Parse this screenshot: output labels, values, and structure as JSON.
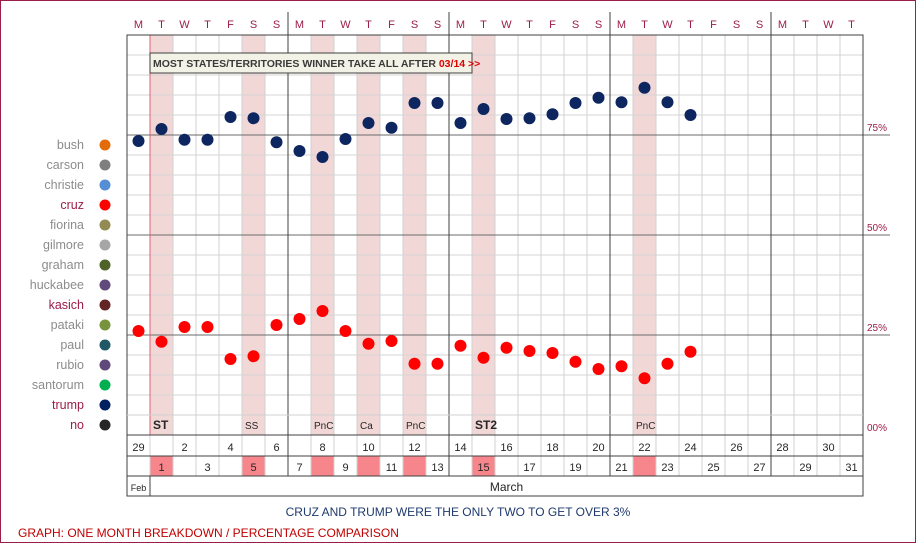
{
  "chart_data": {
    "type": "scatter",
    "x_unit": "day",
    "y_unit": "percent",
    "ylim": [
      0,
      100
    ],
    "y_ticks": [
      {
        "value": 75,
        "label": "75%"
      },
      {
        "value": 50,
        "label": "50%"
      },
      {
        "value": 25,
        "label": "25%"
      },
      {
        "value": 0,
        "label": "00%"
      }
    ],
    "weekday_letters": [
      "M",
      "T",
      "W",
      "T",
      "F",
      "S",
      "S",
      "M",
      "T",
      "W",
      "T",
      "F",
      "S",
      "S",
      "M",
      "T",
      "W",
      "T",
      "F",
      "S",
      "S",
      "M",
      "T",
      "W",
      "T",
      "F",
      "S",
      "S",
      "M",
      "T",
      "W",
      "T"
    ],
    "date_numbers": [
      "29",
      "1",
      "2",
      "3",
      "4",
      "5",
      "6",
      "7",
      "8",
      "9",
      "10",
      "11",
      "12",
      "13",
      "14",
      "15",
      "16",
      "17",
      "18",
      "19",
      "20",
      "21",
      "22",
      "23",
      "24",
      "25",
      "26",
      "27",
      "28",
      "29",
      "30",
      "31"
    ],
    "month_labels": [
      {
        "label": "Feb",
        "from": 0,
        "to": 0
      },
      {
        "label": "March",
        "from": 1,
        "to": 31
      }
    ],
    "highlighted_days": [
      1,
      5,
      8,
      10,
      12,
      15,
      22
    ],
    "event_labels": [
      {
        "day": 1,
        "text": "ST",
        "bold": true
      },
      {
        "day": 5,
        "text": "SS",
        "bold": false
      },
      {
        "day": 8,
        "text": "PnC",
        "bold": false
      },
      {
        "day": 10,
        "text": "Ca",
        "bold": false
      },
      {
        "day": 12,
        "text": "PnC",
        "bold": false
      },
      {
        "day": 15,
        "text": "ST2",
        "bold": true
      },
      {
        "day": 22,
        "text": "PnC",
        "bold": false
      }
    ],
    "annotation": {
      "text": "MOST STATES/TERRITORIES WINNER TAKE ALL AFTER ",
      "highlight": "03/14 >>"
    },
    "legend": [
      {
        "name": "bush",
        "color": "#e36c0a",
        "active": false
      },
      {
        "name": "carson",
        "color": "#7f7f7f",
        "active": false
      },
      {
        "name": "christie",
        "color": "#558ed5",
        "active": false
      },
      {
        "name": "cruz",
        "color": "#ff0000",
        "active": true
      },
      {
        "name": "fiorina",
        "color": "#948a54",
        "active": false
      },
      {
        "name": "gilmore",
        "color": "#a6a6a6",
        "active": false
      },
      {
        "name": "graham",
        "color": "#4f6228",
        "active": false
      },
      {
        "name": "huckabee",
        "color": "#604a7b",
        "active": false
      },
      {
        "name": "kasich",
        "color": "#632523",
        "active": true
      },
      {
        "name": "pataki",
        "color": "#77933c",
        "active": false
      },
      {
        "name": "paul",
        "color": "#215868",
        "active": false
      },
      {
        "name": "rubio",
        "color": "#5f497a",
        "active": false
      },
      {
        "name": "santorum",
        "color": "#00b050",
        "active": false
      },
      {
        "name": "trump",
        "color": "#002060",
        "active": true
      },
      {
        "name": "no",
        "color": "#262626",
        "active": true
      }
    ],
    "series": [
      {
        "name": "trump",
        "color": "#0d2660",
        "points": [
          [
            0,
            73.5
          ],
          [
            1,
            76.5
          ],
          [
            2,
            73.8
          ],
          [
            3,
            73.8
          ],
          [
            4,
            79.5
          ],
          [
            5,
            79.2
          ],
          [
            6,
            73.2
          ],
          [
            7,
            71
          ],
          [
            8,
            69.5
          ],
          [
            9,
            74
          ],
          [
            10,
            78
          ],
          [
            11,
            76.8
          ],
          [
            12,
            83
          ],
          [
            13,
            83
          ],
          [
            14,
            78
          ],
          [
            15,
            81.5
          ],
          [
            16,
            79
          ],
          [
            17,
            79.2
          ],
          [
            18,
            80.2
          ],
          [
            19,
            83
          ],
          [
            20,
            84.3
          ],
          [
            21,
            83.2
          ],
          [
            22,
            86.8
          ],
          [
            23,
            83.2
          ],
          [
            24,
            80
          ]
        ]
      },
      {
        "name": "cruz",
        "color": "#ff0000",
        "points": [
          [
            0,
            26
          ],
          [
            1,
            23.3
          ],
          [
            2,
            27
          ],
          [
            3,
            27
          ],
          [
            4,
            19
          ],
          [
            5,
            19.7
          ],
          [
            6,
            27.5
          ],
          [
            7,
            29
          ],
          [
            8,
            31
          ],
          [
            9,
            26
          ],
          [
            10,
            22.8
          ],
          [
            11,
            23.5
          ],
          [
            12,
            17.8
          ],
          [
            13,
            17.8
          ],
          [
            14,
            22.3
          ],
          [
            15,
            19.3
          ],
          [
            16,
            21.8
          ],
          [
            17,
            21
          ],
          [
            18,
            20.5
          ],
          [
            19,
            18.3
          ],
          [
            20,
            16.5
          ],
          [
            21,
            17.2
          ],
          [
            22,
            14.2
          ],
          [
            23,
            17.8
          ],
          [
            24,
            20.8
          ]
        ]
      }
    ]
  },
  "captions": {
    "main": "CRUZ AND TRUMP WERE THE ONLY TWO TO GET OVER 3%",
    "footer": "GRAPH: ONE MONTH BREAKDOWN / PERCENTAGE COMPARISON"
  }
}
